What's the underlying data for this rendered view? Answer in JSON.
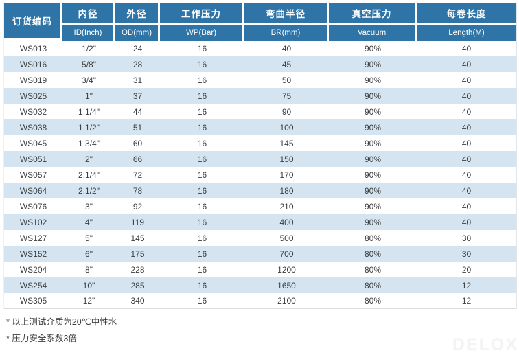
{
  "table": {
    "columns": [
      {
        "zh": "订货编码",
        "en": ""
      },
      {
        "zh": "内径",
        "en": "ID(Inch)"
      },
      {
        "zh": "外径",
        "en": "OD(mm)"
      },
      {
        "zh": "工作压力",
        "en": "WP(Bar)"
      },
      {
        "zh": "弯曲半径",
        "en": "BR(mm)"
      },
      {
        "zh": "真空压力",
        "en": "Vacuum"
      },
      {
        "zh": "每卷长度",
        "en": "Length(M)"
      }
    ],
    "rows": [
      [
        "WS013",
        "1/2\"",
        "24",
        "16",
        "40",
        "90%",
        "40"
      ],
      [
        "WS016",
        "5/8\"",
        "28",
        "16",
        "45",
        "90%",
        "40"
      ],
      [
        "WS019",
        "3/4\"",
        "31",
        "16",
        "50",
        "90%",
        "40"
      ],
      [
        "WS025",
        "1\"",
        "37",
        "16",
        "75",
        "90%",
        "40"
      ],
      [
        "WS032",
        "1.1/4\"",
        "44",
        "16",
        "90",
        "90%",
        "40"
      ],
      [
        "WS038",
        "1.1/2\"",
        "51",
        "16",
        "100",
        "90%",
        "40"
      ],
      [
        "WS045",
        "1.3/4\"",
        "60",
        "16",
        "145",
        "90%",
        "40"
      ],
      [
        "WS051",
        "2\"",
        "66",
        "16",
        "150",
        "90%",
        "40"
      ],
      [
        "WS057",
        "2.1/4\"",
        "72",
        "16",
        "170",
        "90%",
        "40"
      ],
      [
        "WS064",
        "2.1/2\"",
        "78",
        "16",
        "180",
        "90%",
        "40"
      ],
      [
        "WS076",
        "3\"",
        "92",
        "16",
        "210",
        "90%",
        "40"
      ],
      [
        "WS102",
        "4\"",
        "119",
        "16",
        "400",
        "90%",
        "40"
      ],
      [
        "WS127",
        "5\"",
        "145",
        "16",
        "500",
        "80%",
        "30"
      ],
      [
        "WS152",
        "6\"",
        "175",
        "16",
        "700",
        "80%",
        "30"
      ],
      [
        "WS204",
        "8\"",
        "228",
        "16",
        "1200",
        "80%",
        "20"
      ],
      [
        "WS254",
        "10\"",
        "285",
        "16",
        "1650",
        "80%",
        "12"
      ],
      [
        "WS305",
        "12\"",
        "340",
        "16",
        "2100",
        "80%",
        "12"
      ]
    ]
  },
  "notes": [
    "* 以上测试介质为20℃中性水",
    "* 压力安全系数3倍"
  ],
  "watermark": "DELOX",
  "colors": {
    "header_bg": "#2E74A6",
    "stripe": "#D4E5F1",
    "text": "#3D3D3D"
  }
}
